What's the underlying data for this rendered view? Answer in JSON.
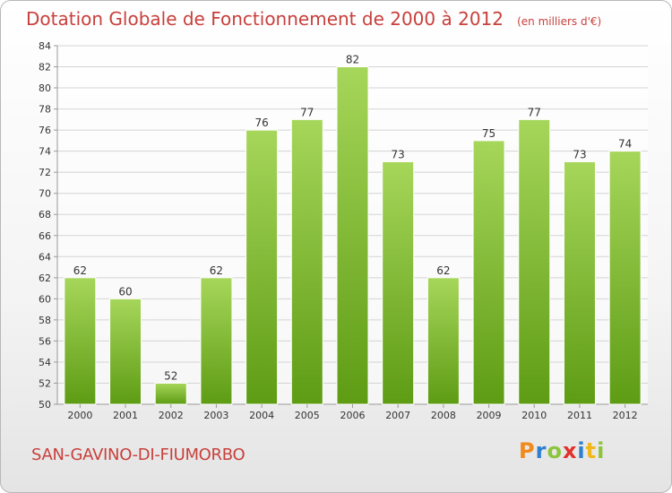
{
  "title": "Dotation Globale de Fonctionnement de 2000 à 2012",
  "unit": "(en milliers d'€)",
  "commune": "SAN-GAVINO-DI-FIUMORBO",
  "logo": {
    "letters": [
      "P",
      "r",
      "o",
      "x",
      "i",
      "t",
      "i"
    ],
    "colors": [
      "#f08a1c",
      "#2f7fd0",
      "#8cc43c",
      "#e0322a",
      "#2f7fd0",
      "#f0b81c",
      "#8cc43c"
    ]
  },
  "colors": {
    "bar_light": "#a6d65a",
    "bar_dark": "#5e9c14",
    "grid": "#d4d4d4",
    "text": "#333333",
    "title": "#c8403c"
  },
  "chart_data": {
    "type": "bar",
    "title": "Dotation Globale de Fonctionnement de 2000 à 2012",
    "xlabel": "",
    "ylabel": "",
    "categories": [
      "2000",
      "2001",
      "2002",
      "2003",
      "2004",
      "2005",
      "2006",
      "2007",
      "2008",
      "2009",
      "2010",
      "2011",
      "2012"
    ],
    "values": [
      62,
      60,
      52,
      62,
      76,
      77,
      82,
      73,
      62,
      75,
      77,
      73,
      74
    ],
    "ylim": [
      50,
      84
    ],
    "yticks": [
      50,
      52,
      54,
      56,
      58,
      60,
      62,
      64,
      66,
      68,
      70,
      72,
      74,
      76,
      78,
      80,
      82,
      84
    ],
    "grid": true,
    "legend": "none"
  }
}
